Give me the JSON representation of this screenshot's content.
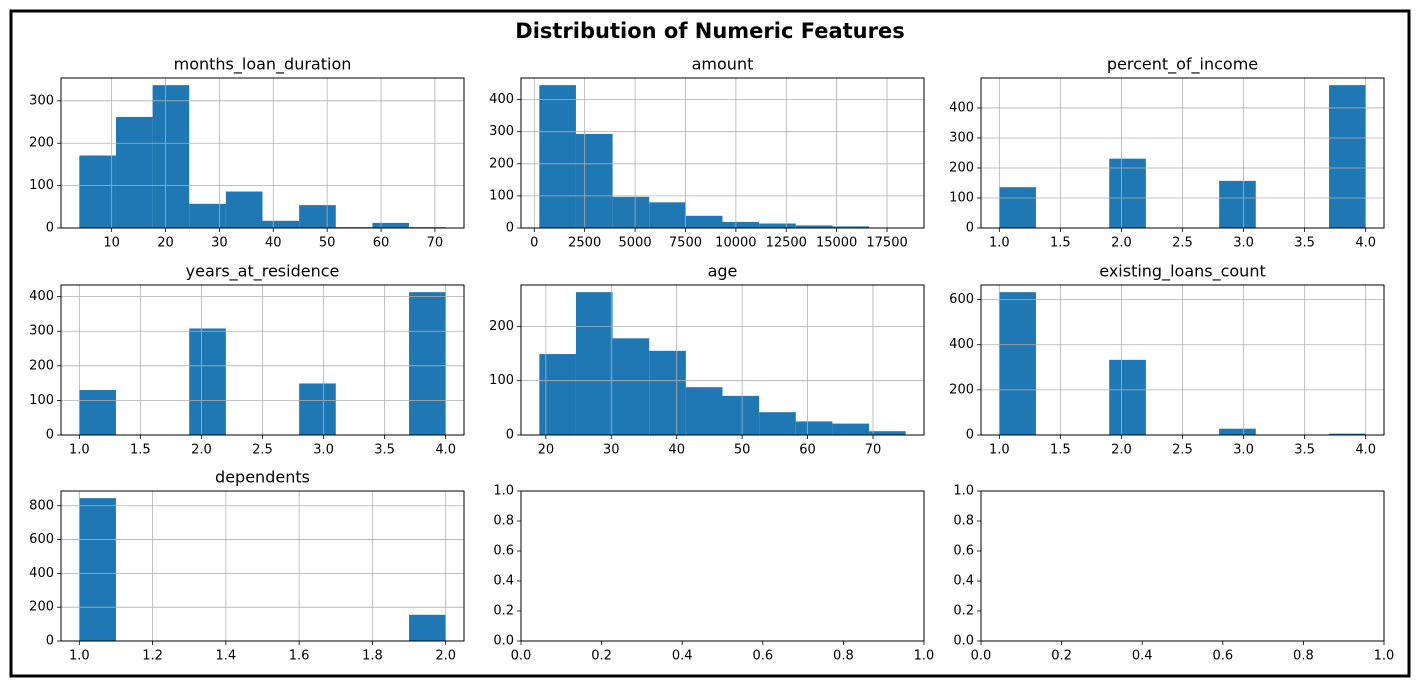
{
  "title": "Distribution of Numeric Features",
  "chart_data": [
    {
      "type": "histogram",
      "title": "months_loan_duration",
      "color": "#1f77b4",
      "grid": true,
      "bins": [
        4,
        10.8,
        17.6,
        24.4,
        31.2,
        38,
        44.8,
        51.6,
        58.4,
        65.2,
        72
      ],
      "counts": [
        171,
        262,
        337,
        57,
        86,
        17,
        54,
        2,
        12,
        2
      ],
      "xlim": [
        0.6,
        75.4
      ],
      "xticks": [
        10,
        20,
        30,
        40,
        50,
        60,
        70
      ],
      "ylim": [
        0,
        353.85
      ],
      "yticks": [
        0,
        100,
        200,
        300
      ]
    },
    {
      "type": "histogram",
      "title": "amount",
      "color": "#1f77b4",
      "grid": true,
      "bins": [
        250,
        2067.4,
        3884.8,
        5702.2,
        7519.6,
        9337,
        11154.4,
        12971.8,
        14789.2,
        16606.6,
        18424
      ],
      "counts": [
        445,
        293,
        97,
        80,
        38,
        19,
        14,
        8,
        5,
        1
      ],
      "xlim": [
        -658.7,
        19332.7
      ],
      "xticks": [
        0,
        2500,
        5000,
        7500,
        10000,
        12500,
        15000,
        17500
      ],
      "ylim": [
        0,
        467.25
      ],
      "yticks": [
        0,
        100,
        200,
        300,
        400
      ]
    },
    {
      "type": "histogram",
      "title": "percent_of_income",
      "color": "#1f77b4",
      "grid": true,
      "bins": [
        1,
        1.3,
        1.6,
        1.9,
        2.2,
        2.5,
        2.8,
        3.1,
        3.4,
        3.7,
        4
      ],
      "counts": [
        136,
        0,
        0,
        231,
        0,
        0,
        157,
        0,
        0,
        476
      ],
      "xlim": [
        0.85,
        4.15
      ],
      "xticks": [
        {
          "value": 1,
          "label": "1.0"
        },
        1.5,
        {
          "value": 2,
          "label": "2.0"
        },
        2.5,
        {
          "value": 3,
          "label": "3.0"
        },
        3.5,
        {
          "value": 4,
          "label": "4.0"
        }
      ],
      "ylim": [
        0,
        499.8
      ],
      "yticks": [
        0,
        100,
        200,
        300,
        400
      ]
    },
    {
      "type": "histogram",
      "title": "years_at_residence",
      "color": "#1f77b4",
      "grid": true,
      "bins": [
        1,
        1.3,
        1.6,
        1.9,
        2.2,
        2.5,
        2.8,
        3.1,
        3.4,
        3.7,
        4
      ],
      "counts": [
        130,
        0,
        0,
        308,
        0,
        0,
        149,
        0,
        0,
        413
      ],
      "xlim": [
        0.85,
        4.15
      ],
      "xticks": [
        {
          "value": 1,
          "label": "1.0"
        },
        1.5,
        {
          "value": 2,
          "label": "2.0"
        },
        2.5,
        {
          "value": 3,
          "label": "3.0"
        },
        3.5,
        {
          "value": 4,
          "label": "4.0"
        }
      ],
      "ylim": [
        0,
        433.65
      ],
      "yticks": [
        0,
        100,
        200,
        300,
        400
      ]
    },
    {
      "type": "histogram",
      "title": "age",
      "color": "#1f77b4",
      "grid": true,
      "bins": [
        19,
        24.6,
        30.2,
        35.8,
        41.4,
        47,
        52.6,
        58.2,
        63.8,
        69.4,
        75
      ],
      "counts": [
        149,
        263,
        178,
        155,
        88,
        72,
        42,
        25,
        21,
        7
      ],
      "xlim": [
        16.2,
        77.8
      ],
      "xticks": [
        20,
        30,
        40,
        50,
        60,
        70
      ],
      "ylim": [
        0,
        276.15
      ],
      "yticks": [
        0,
        100,
        200
      ]
    },
    {
      "type": "histogram",
      "title": "existing_loans_count",
      "color": "#1f77b4",
      "grid": true,
      "bins": [
        1,
        1.3,
        1.6,
        1.9,
        2.2,
        2.5,
        2.8,
        3.1,
        3.4,
        3.7,
        4
      ],
      "counts": [
        633,
        0,
        0,
        333,
        0,
        0,
        28,
        0,
        0,
        6
      ],
      "xlim": [
        0.85,
        4.15
      ],
      "xticks": [
        {
          "value": 1,
          "label": "1.0"
        },
        1.5,
        {
          "value": 2,
          "label": "2.0"
        },
        2.5,
        {
          "value": 3,
          "label": "3.0"
        },
        3.5,
        {
          "value": 4,
          "label": "4.0"
        }
      ],
      "ylim": [
        0,
        664.65
      ],
      "yticks": [
        0,
        200,
        400,
        600
      ]
    },
    {
      "type": "histogram",
      "title": "dependents",
      "color": "#1f77b4",
      "grid": true,
      "bins": [
        1,
        1.1,
        1.2,
        1.3,
        1.4,
        1.5,
        1.6,
        1.7,
        1.8,
        1.9,
        2
      ],
      "counts": [
        845,
        0,
        0,
        0,
        0,
        0,
        0,
        0,
        0,
        155
      ],
      "xlim": [
        0.95,
        2.05
      ],
      "xticks": [
        {
          "value": 1,
          "label": "1.0"
        },
        {
          "value": 1.2,
          "label": "1.2"
        },
        {
          "value": 1.4,
          "label": "1.4"
        },
        {
          "value": 1.6,
          "label": "1.6"
        },
        {
          "value": 1.8,
          "label": "1.8"
        },
        {
          "value": 2,
          "label": "2.0"
        }
      ],
      "ylim": [
        0,
        887.25
      ],
      "yticks": [
        0,
        200,
        400,
        600,
        800
      ]
    },
    {
      "type": "axes",
      "grid": false,
      "xlim": [
        0,
        1
      ],
      "ylim": [
        0,
        1
      ],
      "xticks": [
        {
          "value": 0,
          "label": "0.0"
        },
        {
          "value": 0.2,
          "label": "0.2"
        },
        {
          "value": 0.4,
          "label": "0.4"
        },
        {
          "value": 0.6,
          "label": "0.6"
        },
        {
          "value": 0.8,
          "label": "0.8"
        },
        {
          "value": 1,
          "label": "1.0"
        }
      ],
      "yticks": [
        {
          "value": 0,
          "label": "0.0"
        },
        {
          "value": 0.2,
          "label": "0.2"
        },
        {
          "value": 0.4,
          "label": "0.4"
        },
        {
          "value": 0.6,
          "label": "0.6"
        },
        {
          "value": 0.8,
          "label": "0.8"
        },
        {
          "value": 1,
          "label": "1.0"
        }
      ]
    },
    {
      "type": "axes",
      "grid": false,
      "xlim": [
        0,
        1
      ],
      "ylim": [
        0,
        1
      ],
      "xticks": [
        {
          "value": 0,
          "label": "0.0"
        },
        {
          "value": 0.2,
          "label": "0.2"
        },
        {
          "value": 0.4,
          "label": "0.4"
        },
        {
          "value": 0.6,
          "label": "0.6"
        },
        {
          "value": 0.8,
          "label": "0.8"
        },
        {
          "value": 1,
          "label": "1.0"
        }
      ],
      "yticks": [
        {
          "value": 0,
          "label": "0.0"
        },
        {
          "value": 0.2,
          "label": "0.2"
        },
        {
          "value": 0.4,
          "label": "0.4"
        },
        {
          "value": 0.6,
          "label": "0.6"
        },
        {
          "value": 0.8,
          "label": "0.8"
        },
        {
          "value": 1,
          "label": "1.0"
        }
      ]
    }
  ]
}
